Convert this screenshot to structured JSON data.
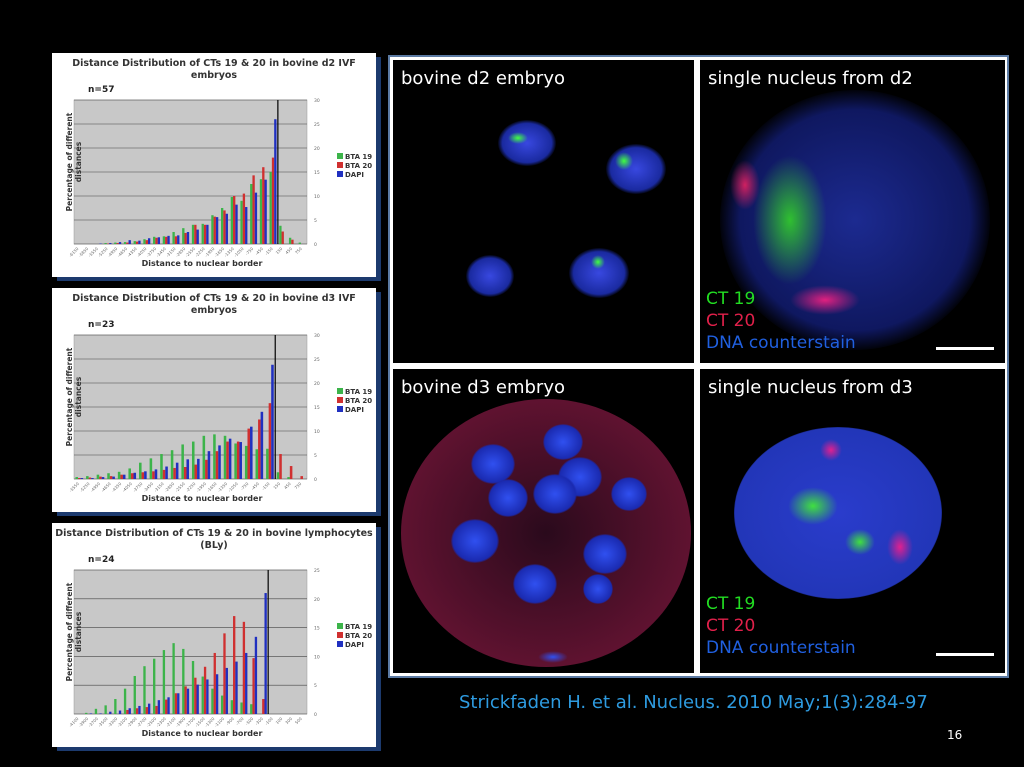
{
  "chart_data": [
    {
      "type": "bar",
      "title": "Distance Distribution of CTs 19 & 20 in bovine d2 IVF embryos",
      "n_label": "n=57",
      "ylabel": "Percentage of different distances",
      "xlabel": "Distance to nuclear border",
      "ylim": [
        0,
        30
      ],
      "yticks": [
        "0",
        "5",
        "10",
        "15",
        "20",
        "25",
        "30"
      ],
      "legend": "right",
      "categories": [
        "-6150",
        "-5850",
        "-5550",
        "-5250",
        "-4950",
        "-4650",
        "-4350",
        "-4050",
        "-3750",
        "-3450",
        "-3150",
        "-2850",
        "-2550",
        "-2250",
        "-1950",
        "-1650",
        "-1350",
        "-1050",
        "-750",
        "-450",
        "-150",
        "150",
        "450",
        "750"
      ],
      "series": [
        {
          "name": "BTA 19",
          "color": "#3cb44a",
          "values": [
            0,
            0,
            0,
            0.2,
            0.3,
            0.4,
            0.6,
            1,
            1.5,
            1.6,
            2.5,
            3.3,
            4,
            4.2,
            6,
            7.5,
            9.8,
            9,
            12.5,
            13.5,
            15,
            3.8,
            1.3,
            0.3
          ]
        },
        {
          "name": "BTA 20",
          "color": "#d03030",
          "values": [
            0,
            0,
            0,
            0.1,
            0.2,
            0.3,
            0.5,
            0.8,
            1.3,
            1.5,
            1.6,
            2.3,
            4,
            4,
            5.7,
            7,
            10,
            10.5,
            14.3,
            16,
            18,
            2.6,
            0.9,
            0
          ]
        },
        {
          "name": "DAPI",
          "color": "#2030c0",
          "values": [
            0,
            0,
            0.1,
            0.2,
            0.4,
            0.8,
            0.7,
            1.2,
            1.4,
            1.7,
            1.8,
            2.5,
            3,
            4,
            5.6,
            6.3,
            8.2,
            7.7,
            10.7,
            13.4,
            26,
            0,
            0,
            0
          ]
        }
      ],
      "zero_after_index": 20
    },
    {
      "type": "bar",
      "title": "Distance Distribution of CTs 19 & 20 in bovine d3 IVF embryos",
      "n_label": "n=23",
      "ylabel": "Percentage of different distances",
      "xlabel": "Distance to nuclear border",
      "ylim": [
        0,
        30
      ],
      "yticks": [
        "0",
        "5",
        "10",
        "15",
        "20",
        "25",
        "30"
      ],
      "legend": "right",
      "categories": [
        "-5550",
        "-5250",
        "-4950",
        "-4650",
        "-4350",
        "-4050",
        "-3750",
        "-3450",
        "-3150",
        "-2850",
        "-2550",
        "-2250",
        "-1950",
        "-1650",
        "-1350",
        "-1050",
        "-750",
        "-450",
        "-150",
        "150",
        "450",
        "750"
      ],
      "series": [
        {
          "name": "BTA 19",
          "color": "#3cb44a",
          "values": [
            0.4,
            0.6,
            0.9,
            1.2,
            1.5,
            2.2,
            3.4,
            4.3,
            5.2,
            6,
            7.2,
            7.8,
            9,
            9.3,
            9,
            7.4,
            6.9,
            6.2,
            6.3,
            1.4,
            0.4,
            0
          ]
        },
        {
          "name": "BTA 20",
          "color": "#d03030",
          "values": [
            0.2,
            0.3,
            0.5,
            0.6,
            0.9,
            1.2,
            1.4,
            1.6,
            1.9,
            2.3,
            2.5,
            3,
            4,
            5.8,
            7.8,
            7.8,
            10.5,
            12.4,
            15.8,
            5.2,
            2.7,
            0.6
          ]
        },
        {
          "name": "DAPI",
          "color": "#2030c0",
          "values": [
            0.2,
            0.2,
            0.4,
            0.5,
            0.9,
            1.3,
            1.6,
            2,
            2.6,
            3.4,
            4.1,
            4.2,
            5.8,
            7,
            8.4,
            7.7,
            10.9,
            14,
            23.8,
            0,
            0,
            0
          ]
        }
      ],
      "zero_after_index": 18
    },
    {
      "type": "bar",
      "title": "Distance Distribution of CTs 19 & 20 in bovine lymphocytes (BLy)",
      "n_label": "n=24",
      "ylabel": "Percentage of different distances",
      "xlabel": "Distance to nuclear border",
      "ylim": [
        0,
        25
      ],
      "yticks": [
        "0",
        "5",
        "10",
        "15",
        "20",
        "25"
      ],
      "legend": "right",
      "categories": [
        "-4100",
        "-3900",
        "-3700",
        "-3500",
        "-3300",
        "-3100",
        "-2900",
        "-2700",
        "-2500",
        "-2300",
        "-2100",
        "-1900",
        "-1700",
        "-1500",
        "-1300",
        "-1100",
        "-900",
        "-700",
        "-500",
        "-300",
        "-100",
        "100",
        "300",
        "500"
      ],
      "series": [
        {
          "name": "BTA 19",
          "color": "#3cb44a",
          "values": [
            0,
            0.2,
            0.9,
            1.5,
            2.6,
            4.4,
            6.6,
            8.3,
            9.6,
            11.1,
            12.3,
            11.3,
            9.2,
            6.5,
            4.4,
            3.2,
            2.4,
            2,
            1.7,
            0,
            0,
            0,
            0,
            0
          ]
        },
        {
          "name": "BTA 20",
          "color": "#d03030",
          "values": [
            0,
            0,
            0,
            0,
            0,
            0.7,
            1,
            1.2,
            1.4,
            2.5,
            3.6,
            4.8,
            6.3,
            8.2,
            10.6,
            14,
            17,
            16,
            9.7,
            2.6,
            0,
            0,
            0,
            0
          ]
        },
        {
          "name": "DAPI",
          "color": "#2030c0",
          "values": [
            0,
            0.1,
            0.1,
            0.4,
            0.6,
            1,
            1.4,
            1.8,
            2.4,
            2.9,
            3.6,
            4.4,
            5.1,
            6,
            6.9,
            8,
            9.1,
            10.6,
            13.4,
            21,
            0,
            0,
            0,
            0
          ]
        }
      ],
      "zero_after_index": 19
    }
  ],
  "micro": {
    "tl_label": "bovine d2 embryo",
    "tr_label": "single nucleus from d2",
    "bl_label": "bovine d3 embryo",
    "br_label": "single nucleus from d3",
    "legend": {
      "ct19": "CT 19",
      "ct20": "CT 20",
      "dna": "DNA counterstain"
    },
    "colors": {
      "ct19": "#22dd22",
      "ct20": "#e0204a",
      "dna": "#2060e0"
    }
  },
  "citation": "Strickfaden H. et al. Nucleus. 2010 May;1(3):284-97",
  "page_number": "16"
}
